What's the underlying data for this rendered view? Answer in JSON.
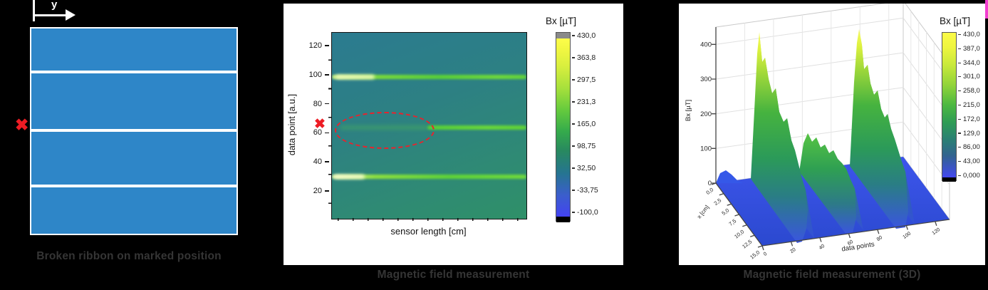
{
  "ribbon_panel": {
    "caption": "Broken ribbon on marked position",
    "y_axis_label": "y",
    "ribbon_color": "#2e86c8",
    "break_marker": "✖"
  },
  "heatmap_panel": {
    "caption": "Magnetic field measurement",
    "x_label": "sensor length [cm]",
    "y_label": "data point [a.u.]",
    "y_ticks": [
      "120",
      "100",
      "80",
      "60",
      "40",
      "20"
    ],
    "colorbar_title": "Bx [µT]",
    "colorbar_ticks": [
      "430,0",
      "363,8",
      "297,5",
      "231,3",
      "165,0",
      "98,75",
      "32,50",
      "-33,75",
      "-100,0"
    ],
    "break_marker": "✖"
  },
  "surface_panel": {
    "caption": "Magnetic field measurement (3D)",
    "z_label": "Bx [µT]",
    "z_ticks": [
      "400",
      "300",
      "200",
      "100",
      "0"
    ],
    "x_label": "x [cm]",
    "x_ticks": [
      "0,0",
      "2,5",
      "5,0",
      "7,5",
      "10,0",
      "12,5",
      "15,0"
    ],
    "y_label": "data points",
    "y_ticks": [
      "0",
      "20",
      "40",
      "60",
      "80",
      "100",
      "120"
    ],
    "colorbar_title": "Bx [µT]",
    "colorbar_ticks": [
      "430,0",
      "387,0",
      "344,0",
      "301,0",
      "258,0",
      "215,0",
      "172,0",
      "129,0",
      "86,00",
      "43,00",
      "0,000"
    ]
  },
  "chart_data": [
    {
      "type": "heatmap",
      "title": "Magnetic field measurement",
      "xlabel": "sensor length [cm]",
      "ylabel": "data point [a.u.]",
      "ylim": [
        0,
        130
      ],
      "yticks": [
        20,
        40,
        60,
        80,
        100,
        120
      ],
      "xticks_labeled": false,
      "background_value_uT": 32.5,
      "colorbar": {
        "title": "Bx [µT]",
        "min": -100.0,
        "max": 430.0,
        "ticks": [
          430.0,
          363.8,
          297.5,
          231.3,
          165.0,
          98.75,
          32.5,
          -33.75,
          -100.0
        ],
        "over_color": "gray",
        "under_color": "black"
      },
      "features": [
        {
          "kind": "stripe",
          "data_point": 99,
          "extent": "full width",
          "peak_Bx_uT": 420,
          "note": "bright band, hottest at left end"
        },
        {
          "kind": "stripe",
          "data_point": 64,
          "extent": "right half only, faint on left half",
          "peak_Bx_uT": 300,
          "note": "interrupted band caused by broken ribbon"
        },
        {
          "kind": "stripe",
          "data_point": 30,
          "extent": "full width",
          "peak_Bx_uT": 430,
          "note": "bright band, hottest at left end"
        },
        {
          "kind": "annotation",
          "shape": "dashed-ellipse",
          "color": "#e8232d",
          "center_data_point": 64,
          "note": "marks missing-signal region"
        },
        {
          "kind": "annotation",
          "shape": "x-marker",
          "color": "#ed1c24",
          "data_point": 65,
          "position": "left of y-axis"
        }
      ]
    },
    {
      "type": "surface",
      "title": "Magnetic field measurement (3D)",
      "zlabel": "Bx [µT]",
      "zlim": [
        0,
        450
      ],
      "zticks": [
        0,
        100,
        200,
        300,
        400
      ],
      "x_axis": {
        "label": "x [cm]",
        "ticks": [
          0.0,
          2.5,
          5.0,
          7.5,
          10.0,
          12.5,
          15.0
        ]
      },
      "y_axis": {
        "label": "data points",
        "ticks": [
          0,
          20,
          40,
          60,
          80,
          100,
          120
        ]
      },
      "colorbar": {
        "title": "Bx [µT]",
        "min": 0.0,
        "max": 430.0,
        "ticks": [
          430.0,
          387.0,
          344.0,
          301.0,
          258.0,
          215.0,
          172.0,
          129.0,
          86.0,
          43.0,
          0.0
        ],
        "under_color": "black"
      },
      "floor_Bx_uT": 30,
      "ridges": [
        {
          "data_point": 30,
          "peak_Bx_uT": 420,
          "taper_to_uT": 150,
          "note": "tall ridge, peak at small x"
        },
        {
          "data_point": 64,
          "peak_Bx_uT": 150,
          "note": "lower ridge – broken ribbon"
        },
        {
          "data_point": 99,
          "peak_Bx_uT": 395,
          "taper_to_uT": 160,
          "note": "tall ridge, peak at small x"
        }
      ]
    }
  ]
}
